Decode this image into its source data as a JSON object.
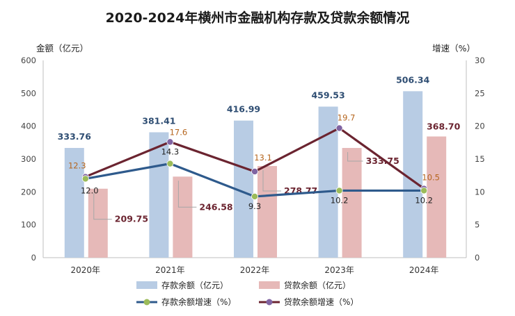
{
  "chart_data": {
    "type": "bar+line",
    "title": "2020-2024年横州市金融机构存款及贷款余额情况",
    "left_axis_label": "金额（亿元）",
    "right_axis_label": "增速（%）",
    "categories": [
      "2020年",
      "2021年",
      "2022年",
      "2023年",
      "2024年"
    ],
    "ylim_left": [
      0,
      600
    ],
    "ylim_right": [
      0,
      30
    ],
    "yticks_left": [
      "0",
      "100",
      "200",
      "300",
      "400",
      "500",
      "600"
    ],
    "yticks_right": [
      "0",
      "5",
      "10",
      "15",
      "20",
      "25",
      "30"
    ],
    "grid": false,
    "legend_position": "bottom",
    "series": [
      {
        "name": "存款余额（亿元）",
        "kind": "bar",
        "axis": "left",
        "color": "#b8cce4",
        "values": [
          333.76,
          381.41,
          416.99,
          459.53,
          506.34
        ],
        "labels": [
          "333.76",
          "381.41",
          "416.99",
          "459.53",
          "506.34"
        ]
      },
      {
        "name": "贷款余额（亿元）",
        "kind": "bar",
        "axis": "left",
        "color": "#e6b9b8",
        "values": [
          209.75,
          246.58,
          278.77,
          333.75,
          368.7
        ],
        "labels": [
          "209.75",
          "246.58",
          "278.77",
          "333.75",
          "368.70"
        ]
      },
      {
        "name": "存款余额增速（%）",
        "kind": "line",
        "axis": "right",
        "color": "#2e5a8c",
        "marker_color": "#9bbb59",
        "values": [
          12.0,
          14.3,
          9.3,
          10.2,
          10.2
        ],
        "labels": [
          "12.0",
          "14.3",
          "9.3",
          "10.2",
          "10.2"
        ]
      },
      {
        "name": "贷款余额增速（%）",
        "kind": "line",
        "axis": "right",
        "color": "#6b2430",
        "marker_color": "#8064a2",
        "values": [
          12.3,
          17.6,
          13.1,
          19.7,
          10.5
        ],
        "labels": [
          "12.3",
          "17.6",
          "13.1",
          "19.7",
          "10.5"
        ]
      }
    ]
  }
}
